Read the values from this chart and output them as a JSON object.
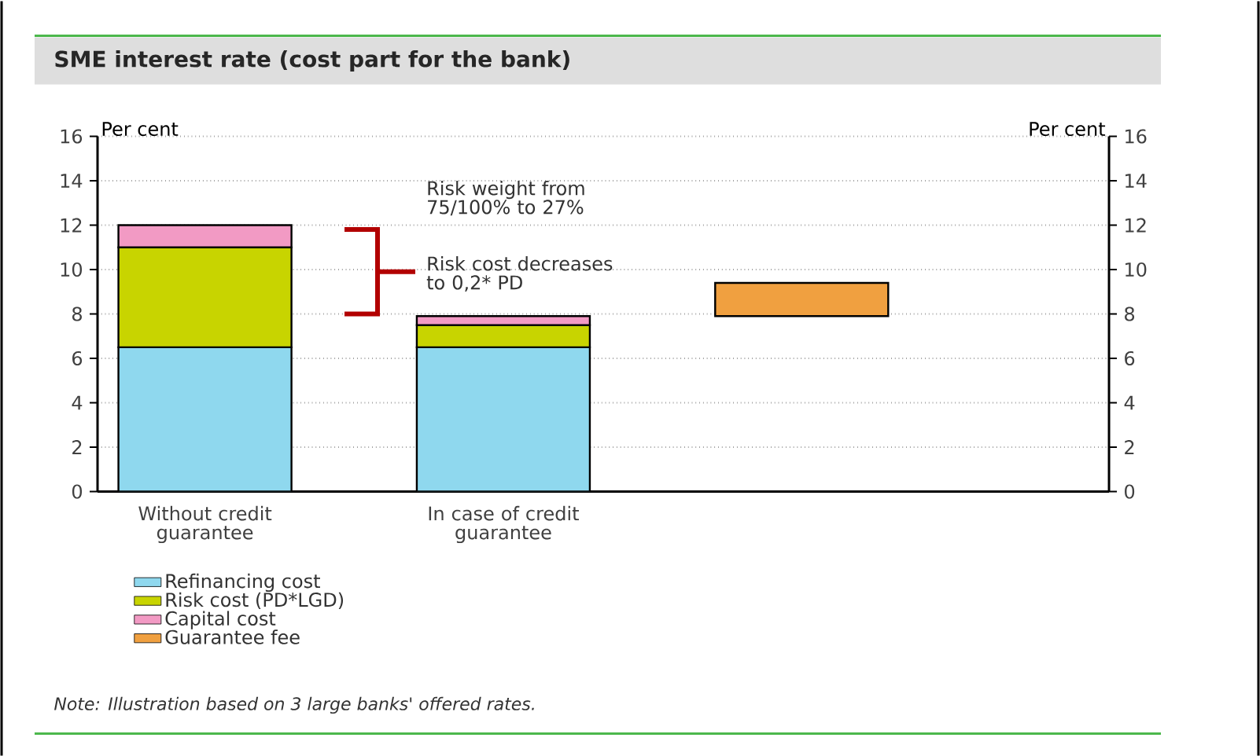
{
  "chart_data": {
    "type": "bar",
    "title": "SME interest rate (cost part for the bank)",
    "categories": [
      "Without credit guarantee",
      "In case of credit guarantee",
      null
    ],
    "stacked": true,
    "series": [
      {
        "name": "Refinancing cost",
        "color": "#8fd8ee",
        "values": [
          6.5,
          6.5,
          null
        ]
      },
      {
        "name": "Risk cost (PD*LGD)",
        "color": "#c8d400",
        "values": [
          4.5,
          1.0,
          null
        ]
      },
      {
        "name": "Capital cost",
        "color": "#f29ac4",
        "values": [
          1.0,
          0.4,
          null
        ]
      },
      {
        "name": "Guarantee fee",
        "color": "#f0a040",
        "values": [
          null,
          null,
          1.5
        ],
        "base": [
          null,
          null,
          7.9
        ]
      }
    ],
    "ylabel": "Per cent",
    "y2label": "Per cent",
    "ylim": [
      0,
      16
    ],
    "yticks": [
      0,
      2,
      4,
      6,
      8,
      10,
      12,
      14,
      16
    ],
    "y2lim": [
      0,
      16
    ],
    "y2ticks": [
      0,
      2,
      4,
      6,
      8,
      10,
      12,
      14,
      16
    ],
    "grid": "y",
    "legend": "bottom left",
    "annotations": [
      "Risk weight from 75/100% to 27%",
      "Risk cost decreases to 0,2* PD",
      "Note: Illustration based on 3 large banks' offered rates."
    ]
  }
}
